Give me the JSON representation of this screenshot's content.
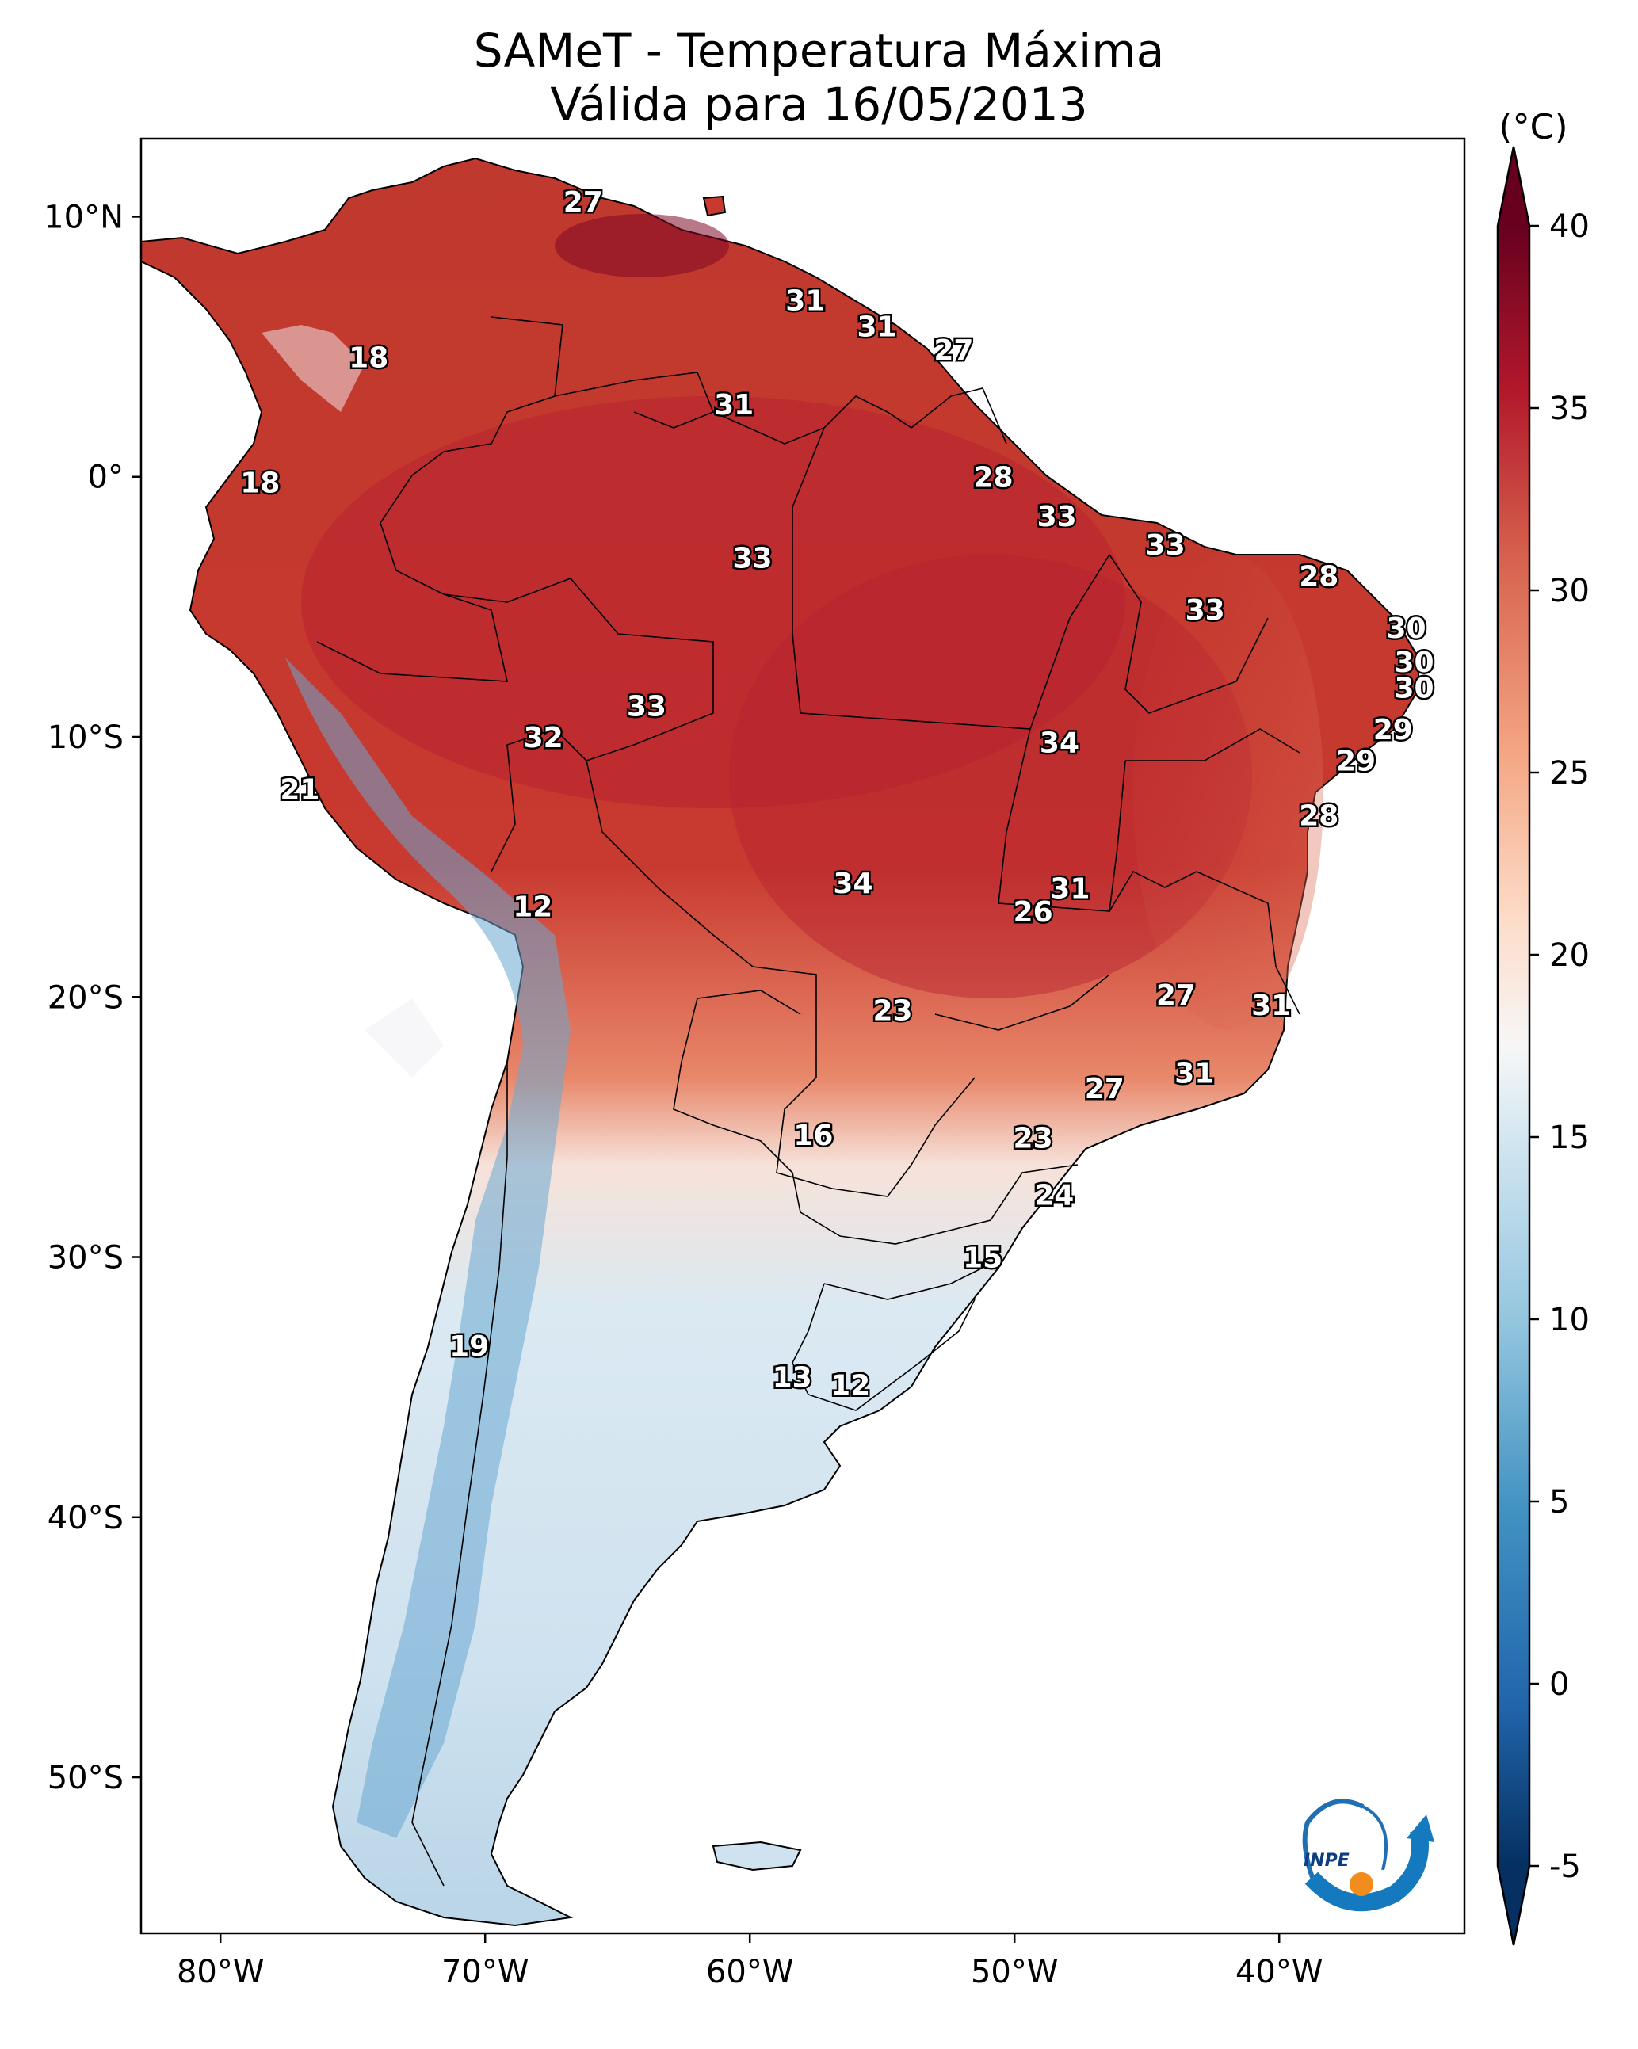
{
  "title": "SAMeT - Temperatura Máxima",
  "subtitle": "Válida para 16/05/2013",
  "colorbar": {
    "unit": "(°C)",
    "min": -5,
    "max": 40,
    "ticks": [
      "-5",
      "0",
      "5",
      "10",
      "15",
      "20",
      "25",
      "30",
      "35",
      "40"
    ],
    "extend": "both",
    "colormap": "RdBu_r",
    "colors": [
      "#053061",
      "#2166ac",
      "#4393c3",
      "#92c5de",
      "#d1e5f0",
      "#f7f7f7",
      "#fddbc7",
      "#f4a582",
      "#d6604d",
      "#b2182b",
      "#67001f"
    ]
  },
  "axes": {
    "lon_ticks": [
      "80°W",
      "70°W",
      "60°W",
      "50°W",
      "40°W"
    ],
    "lat_ticks": [
      "10°N",
      "0°",
      "10°S",
      "20°S",
      "30°S",
      "40°S",
      "50°S"
    ],
    "lon_range": [
      -83,
      -33
    ],
    "lat_range": [
      -56,
      13
    ]
  },
  "logo": {
    "text": "INPE",
    "icon": "inpe-logo-icon"
  },
  "point_values": [
    {
      "lon": -66.3,
      "lat": 10.6,
      "value": "27"
    },
    {
      "lon": -74.4,
      "lat": 4.6,
      "value": "18"
    },
    {
      "lon": -78.5,
      "lat": -0.2,
      "value": "18"
    },
    {
      "lon": -57.9,
      "lat": 6.8,
      "value": "31"
    },
    {
      "lon": -55.2,
      "lat": 5.8,
      "value": "31"
    },
    {
      "lon": -52.3,
      "lat": 4.9,
      "value": "27"
    },
    {
      "lon": -60.6,
      "lat": 2.8,
      "value": "31"
    },
    {
      "lon": -50.8,
      "lat": 0.0,
      "value": "28"
    },
    {
      "lon": -59.9,
      "lat": -3.1,
      "value": "33"
    },
    {
      "lon": -48.4,
      "lat": -1.5,
      "value": "33"
    },
    {
      "lon": -44.3,
      "lat": -2.6,
      "value": "33"
    },
    {
      "lon": -42.8,
      "lat": -5.1,
      "value": "33"
    },
    {
      "lon": -38.5,
      "lat": -3.8,
      "value": "28"
    },
    {
      "lon": -35.2,
      "lat": -5.8,
      "value": "30"
    },
    {
      "lon": -34.9,
      "lat": -7.1,
      "value": "30"
    },
    {
      "lon": -34.9,
      "lat": -8.1,
      "value": "30"
    },
    {
      "lon": -35.7,
      "lat": -9.7,
      "value": "29"
    },
    {
      "lon": -37.1,
      "lat": -10.9,
      "value": "29"
    },
    {
      "lon": -38.5,
      "lat": -13.0,
      "value": "28"
    },
    {
      "lon": -63.9,
      "lat": -8.8,
      "value": "33"
    },
    {
      "lon": -67.8,
      "lat": -10.0,
      "value": "32"
    },
    {
      "lon": -48.3,
      "lat": -10.2,
      "value": "34"
    },
    {
      "lon": -77.0,
      "lat": -12.0,
      "value": "21"
    },
    {
      "lon": -56.1,
      "lat": -15.6,
      "value": "34"
    },
    {
      "lon": -49.3,
      "lat": -16.7,
      "value": "26"
    },
    {
      "lon": -47.9,
      "lat": -15.8,
      "value": "31"
    },
    {
      "lon": -68.2,
      "lat": -16.5,
      "value": "12"
    },
    {
      "lon": -54.6,
      "lat": -20.5,
      "value": "23"
    },
    {
      "lon": -43.9,
      "lat": -19.9,
      "value": "27"
    },
    {
      "lon": -40.3,
      "lat": -20.3,
      "value": "31"
    },
    {
      "lon": -43.2,
      "lat": -22.9,
      "value": "31"
    },
    {
      "lon": -46.6,
      "lat": -23.5,
      "value": "27"
    },
    {
      "lon": -57.6,
      "lat": -25.3,
      "value": "16"
    },
    {
      "lon": -49.3,
      "lat": -25.4,
      "value": "23"
    },
    {
      "lon": -48.5,
      "lat": -27.6,
      "value": "24"
    },
    {
      "lon": -51.2,
      "lat": -30.0,
      "value": "15"
    },
    {
      "lon": -70.6,
      "lat": -33.4,
      "value": "19"
    },
    {
      "lon": -58.4,
      "lat": -34.6,
      "value": "13"
    },
    {
      "lon": -56.2,
      "lat": -34.9,
      "value": "12"
    }
  ]
}
